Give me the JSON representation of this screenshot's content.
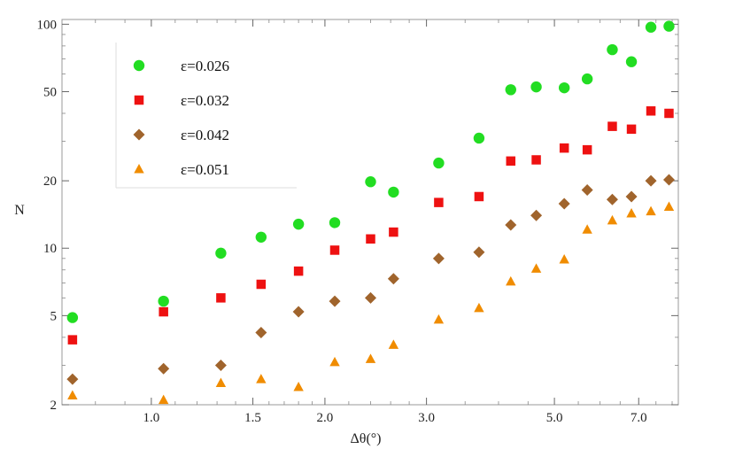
{
  "chart_data": {
    "type": "scatter",
    "xscale": "log",
    "yscale": "log",
    "xlabel": "Δθ(°)",
    "ylabel": "N",
    "xlim": [
      0.7,
      8.2
    ],
    "ylim": [
      2,
      105
    ],
    "xticks": [
      {
        "value": 1.0,
        "label": "1.0"
      },
      {
        "value": 1.5,
        "label": "1.5"
      },
      {
        "value": 2.0,
        "label": "2.0"
      },
      {
        "value": 3.0,
        "label": "3.0"
      },
      {
        "value": 5.0,
        "label": "5.0"
      },
      {
        "value": 7.0,
        "label": "7.0"
      }
    ],
    "yticks": [
      {
        "value": 2,
        "label": "2"
      },
      {
        "value": 5,
        "label": "5"
      },
      {
        "value": 10,
        "label": "10"
      },
      {
        "value": 20,
        "label": "20"
      },
      {
        "value": 50,
        "label": "50"
      },
      {
        "value": 100,
        "label": "100"
      }
    ],
    "legend_placement": "top-left",
    "grid": false,
    "series": [
      {
        "name": "ε=0.026",
        "marker": "circle",
        "color": "#22dd22",
        "points": [
          [
            0.73,
            4.9
          ],
          [
            1.05,
            5.8
          ],
          [
            1.32,
            9.5
          ],
          [
            1.55,
            11.2
          ],
          [
            1.8,
            12.8
          ],
          [
            2.08,
            13.0
          ],
          [
            2.4,
            19.8
          ],
          [
            2.63,
            17.8
          ],
          [
            3.15,
            24.0
          ],
          [
            3.7,
            31.0
          ],
          [
            4.2,
            51.0
          ],
          [
            4.65,
            52.5
          ],
          [
            5.2,
            52.0
          ],
          [
            5.7,
            57.0
          ],
          [
            6.3,
            77.0
          ],
          [
            6.8,
            68.0
          ],
          [
            7.35,
            97.0
          ],
          [
            7.9,
            98.0
          ]
        ]
      },
      {
        "name": "ε=0.032",
        "marker": "square",
        "color": "#ee1111",
        "points": [
          [
            0.73,
            3.9
          ],
          [
            1.05,
            5.2
          ],
          [
            1.32,
            6.0
          ],
          [
            1.55,
            6.9
          ],
          [
            1.8,
            7.9
          ],
          [
            2.08,
            9.8
          ],
          [
            2.4,
            11.0
          ],
          [
            2.63,
            11.8
          ],
          [
            3.15,
            16.0
          ],
          [
            3.7,
            17.0
          ],
          [
            4.2,
            24.5
          ],
          [
            4.65,
            24.8
          ],
          [
            5.2,
            28.0
          ],
          [
            5.7,
            27.5
          ],
          [
            6.3,
            35.0
          ],
          [
            6.8,
            34.0
          ],
          [
            7.35,
            41.0
          ],
          [
            7.9,
            40.0
          ]
        ]
      },
      {
        "name": "ε=0.042",
        "marker": "diamond",
        "color": "#a0642c",
        "points": [
          [
            0.73,
            2.6
          ],
          [
            1.05,
            2.9
          ],
          [
            1.32,
            3.0
          ],
          [
            1.55,
            4.2
          ],
          [
            1.8,
            5.2
          ],
          [
            2.08,
            5.8
          ],
          [
            2.4,
            6.0
          ],
          [
            2.63,
            7.3
          ],
          [
            3.15,
            9.0
          ],
          [
            3.7,
            9.6
          ],
          [
            4.2,
            12.7
          ],
          [
            4.65,
            14.0
          ],
          [
            5.2,
            15.8
          ],
          [
            5.7,
            18.2
          ],
          [
            6.3,
            16.5
          ],
          [
            6.8,
            17.0
          ],
          [
            7.35,
            20.0
          ],
          [
            7.9,
            20.2
          ]
        ]
      },
      {
        "name": "ε=0.051",
        "marker": "triangle",
        "color": "#f08c00",
        "points": [
          [
            0.73,
            2.2
          ],
          [
            1.05,
            2.1
          ],
          [
            1.32,
            2.5
          ],
          [
            1.55,
            2.6
          ],
          [
            1.8,
            2.4
          ],
          [
            2.08,
            3.1
          ],
          [
            2.4,
            3.2
          ],
          [
            2.63,
            3.7
          ],
          [
            3.15,
            4.8
          ],
          [
            3.7,
            5.4
          ],
          [
            4.2,
            7.1
          ],
          [
            4.65,
            8.1
          ],
          [
            5.2,
            8.9
          ],
          [
            5.7,
            12.1
          ],
          [
            6.3,
            13.3
          ],
          [
            6.8,
            14.3
          ],
          [
            7.35,
            14.6
          ],
          [
            7.9,
            15.3
          ]
        ]
      }
    ]
  }
}
